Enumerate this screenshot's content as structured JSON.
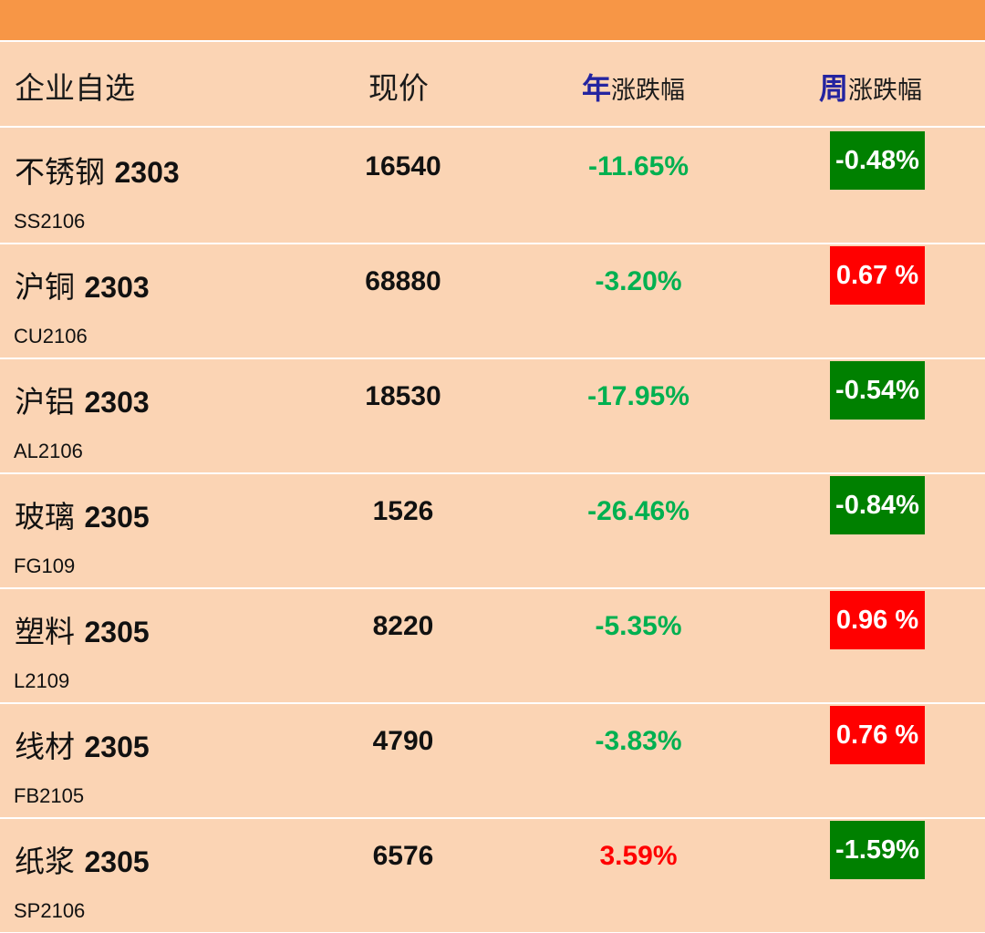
{
  "header": {
    "col_name": "企业自选",
    "col_price": "现价",
    "col_year_hl": "年",
    "col_year_rest": "涨跌幅",
    "col_week_hl": "周",
    "col_week_rest": "涨跌幅"
  },
  "colors": {
    "top_bar": "#f79646",
    "row_bg": "#fbd4b4",
    "down_green": "#00b050",
    "up_red": "#ff0000",
    "box_green": "#008000",
    "box_red": "#ff0000",
    "header_highlight": "#2424a0"
  },
  "rows": [
    {
      "name": "不锈钢",
      "contract": "2303",
      "code": "SS2106",
      "price": "16540",
      "year_change": "-11.65%",
      "year_dir": "down",
      "week_change": "-0.48%",
      "week_dir": "down"
    },
    {
      "name": "沪铜",
      "contract": "2303",
      "code": "CU2106",
      "price": "68880",
      "year_change": "-3.20%",
      "year_dir": "down",
      "week_change": "0.67 %",
      "week_dir": "up"
    },
    {
      "name": "沪铝",
      "contract": "2303",
      "code": "AL2106",
      "price": "18530",
      "year_change": "-17.95%",
      "year_dir": "down",
      "week_change": "-0.54%",
      "week_dir": "down"
    },
    {
      "name": "玻璃",
      "contract": "2305",
      "code": "FG109",
      "price": "1526",
      "year_change": "-26.46%",
      "year_dir": "down",
      "week_change": "-0.84%",
      "week_dir": "down"
    },
    {
      "name": "塑料",
      "contract": "2305",
      "code": "L2109",
      "price": "8220",
      "year_change": "-5.35%",
      "year_dir": "down",
      "week_change": "0.96 %",
      "week_dir": "up"
    },
    {
      "name": "线材",
      "contract": "2305",
      "code": "FB2105",
      "price": "4790",
      "year_change": "-3.83%",
      "year_dir": "down",
      "week_change": "0.76 %",
      "week_dir": "up"
    },
    {
      "name": "纸浆",
      "contract": "2305",
      "code": "SP2106",
      "price": "6576",
      "year_change": "3.59%",
      "year_dir": "up",
      "week_change": "-1.59%",
      "week_dir": "down"
    }
  ]
}
